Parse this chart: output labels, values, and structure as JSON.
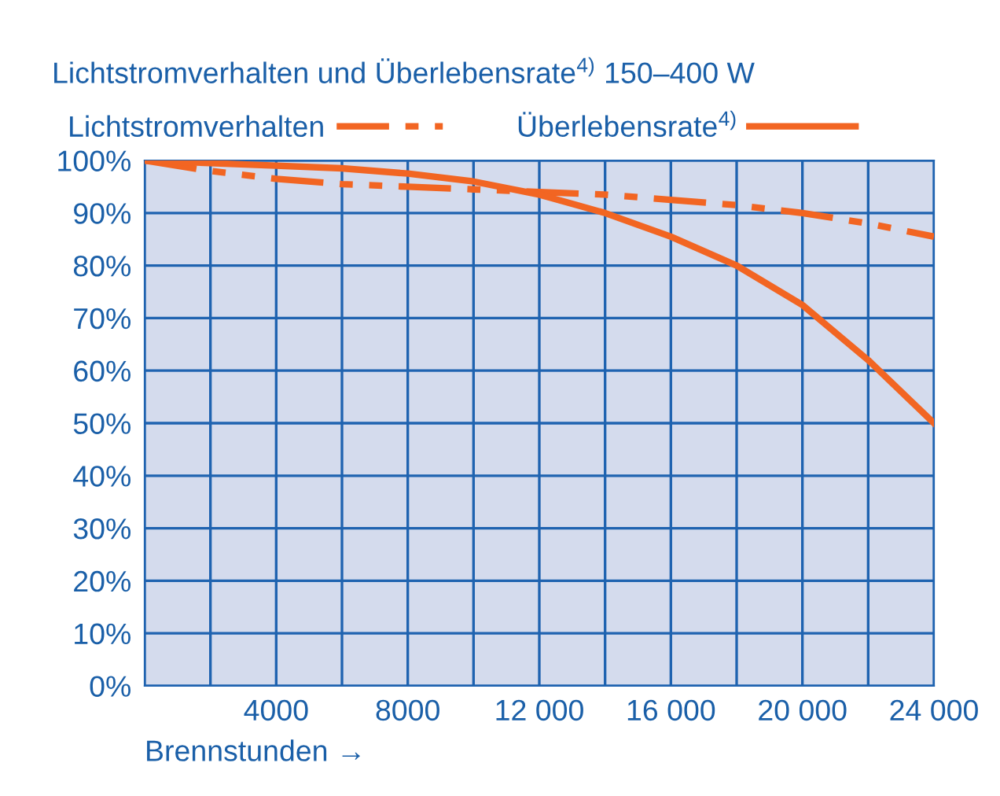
{
  "chart_data": {
    "type": "line",
    "title": "Lichtstromverhalten und Überlebensrate$^{4)}$ 150–400 W",
    "xlabel": "Brennstunden →",
    "x": [
      0,
      2000,
      4000,
      6000,
      8000,
      10000,
      12000,
      14000,
      16000,
      18000,
      20000,
      22000,
      24000
    ],
    "series": [
      {
        "name": "Lichtstromverhalten",
        "color": "#f26522",
        "line_style": "dashed",
        "values": [
          100,
          98,
          96.5,
          95.5,
          95,
          94.5,
          94,
          93.5,
          92.5,
          91.5,
          90,
          88,
          85.5
        ]
      },
      {
        "name": "Überlebensrate$^{4)}$",
        "color": "#f26522",
        "line_style": "solid",
        "values": [
          100,
          99.5,
          99,
          98.5,
          97.5,
          96,
          93.5,
          90,
          85.5,
          80,
          72.5,
          62,
          50
        ]
      }
    ],
    "xlim": [
      0,
      24000
    ],
    "ylim": [
      0,
      100
    ],
    "xticks": [
      {
        "value": 0,
        "label": null
      },
      {
        "value": 2000,
        "label": null
      },
      4000,
      {
        "value": 6000,
        "label": null
      },
      8000,
      {
        "value": 10000,
        "label": null
      },
      {
        "value": 12000,
        "label": "12 000"
      },
      {
        "value": 14000,
        "label": null
      },
      {
        "value": 16000,
        "label": "16 000"
      },
      {
        "value": 18000,
        "label": null
      },
      {
        "value": 20000,
        "label": "20 000"
      },
      {
        "value": 22000,
        "label": null
      },
      {
        "value": 24000,
        "label": "24 000"
      }
    ],
    "yticks": [
      {
        "value": 0,
        "label": "0%"
      },
      {
        "value": 10,
        "label": "10%"
      },
      {
        "value": 20,
        "label": "20%"
      },
      {
        "value": 30,
        "label": "30%"
      },
      {
        "value": 40,
        "label": "40%"
      },
      {
        "value": 50,
        "label": "50%"
      },
      {
        "value": 60,
        "label": "60%"
      },
      {
        "value": 70,
        "label": "70%"
      },
      {
        "value": 80,
        "label": "80%"
      },
      {
        "value": 90,
        "label": "90%"
      },
      {
        "value": 100,
        "label": "100%"
      }
    ],
    "grid": true,
    "legend": "top",
    "marker": "none"
  }
}
